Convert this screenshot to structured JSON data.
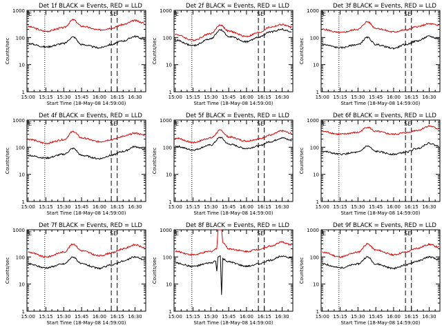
{
  "colors": {
    "events": "#000000",
    "lld": "#dd0000",
    "axes": "#000000",
    "background": "#ffffff"
  },
  "chart_data": [
    {
      "type": "line",
      "title": "Det 1f BLACK = Events, RED = LLD",
      "xlabel": "Start Time (18-May-08 14:59:00)",
      "ylabel": "Counts/sec",
      "yscale": "log",
      "xlim": [
        "14:59",
        "16:39"
      ],
      "ylim": [
        1,
        1000
      ],
      "xticks": [
        "15:00",
        "15:15",
        "15:30",
        "15:45",
        "16:00",
        "16:15",
        "16:30"
      ],
      "yticks": [
        "1",
        "10",
        "100",
        "1000"
      ],
      "markers": {
        "left_label": "E",
        "right_label": "SE",
        "dotted": "15:14",
        "dashed": [
          "16:10",
          "16:15"
        ]
      },
      "series": [
        {
          "name": "RED = LLD",
          "x": [
            "15:00",
            "15:15",
            "15:30",
            "15:38",
            "15:45",
            "16:00",
            "16:10",
            "16:20",
            "16:30",
            "16:38"
          ],
          "values": [
            250,
            170,
            230,
            450,
            260,
            190,
            220,
            300,
            420,
            340
          ]
        },
        {
          "name": "BLACK = Events",
          "x": [
            "15:00",
            "15:15",
            "15:30",
            "15:38",
            "15:45",
            "16:00",
            "16:10",
            "16:20",
            "16:30",
            "16:38"
          ],
          "values": [
            60,
            45,
            60,
            105,
            55,
            42,
            55,
            75,
            110,
            85
          ]
        }
      ]
    },
    {
      "type": "line",
      "title": "Det 2f BLACK = Events, RED = LLD",
      "xlabel": "Start Time (18-May-08 14:59:00)",
      "ylabel": "Counts/sec",
      "yscale": "log",
      "xlim": [
        "14:59",
        "16:39"
      ],
      "ylim": [
        1,
        1000
      ],
      "xticks": [
        "15:00",
        "15:15",
        "15:30",
        "15:45",
        "16:00",
        "16:15",
        "16:30"
      ],
      "yticks": [
        "1",
        "10",
        "100",
        "1000"
      ],
      "markers": {
        "left_label": "E",
        "right_label": "SE",
        "dotted": "15:14",
        "dashed": [
          "16:10",
          "16:15"
        ]
      },
      "series": [
        {
          "name": "RED = LLD",
          "x": [
            "15:00",
            "15:15",
            "15:30",
            "15:38",
            "15:45",
            "16:00",
            "16:10",
            "16:20",
            "16:30",
            "16:38"
          ],
          "values": [
            130,
            80,
            140,
            290,
            170,
            110,
            150,
            240,
            300,
            240
          ]
        },
        {
          "name": "BLACK = Events",
          "x": [
            "15:00",
            "15:15",
            "15:30",
            "15:38",
            "15:45",
            "16:00",
            "16:10",
            "16:20",
            "16:30",
            "16:38"
          ],
          "values": [
            80,
            50,
            90,
            190,
            110,
            70,
            100,
            160,
            200,
            160
          ]
        }
      ]
    },
    {
      "type": "line",
      "title": "Det 3f BLACK = Events, RED = LLD",
      "xlabel": "Start Time (18-May-08 14:59:00)",
      "ylabel": "Counts/sec",
      "yscale": "log",
      "xlim": [
        "14:59",
        "16:39"
      ],
      "ylim": [
        1,
        1000
      ],
      "xticks": [
        "15:00",
        "15:15",
        "15:30",
        "15:45",
        "16:00",
        "16:15",
        "16:30"
      ],
      "yticks": [
        "1",
        "10",
        "100",
        "1000"
      ],
      "markers": {
        "left_label": "E",
        "right_label": "SE",
        "dotted": "15:14",
        "dashed": [
          "16:10",
          "16:15"
        ]
      },
      "series": [
        {
          "name": "RED = LLD",
          "x": [
            "15:00",
            "15:15",
            "15:30",
            "15:38",
            "15:45",
            "16:00",
            "16:10",
            "16:20",
            "16:30",
            "16:38"
          ],
          "values": [
            200,
            150,
            200,
            380,
            220,
            160,
            190,
            250,
            320,
            280
          ]
        },
        {
          "name": "BLACK = Events",
          "x": [
            "15:00",
            "15:15",
            "15:30",
            "15:38",
            "15:45",
            "16:00",
            "16:10",
            "16:20",
            "16:30",
            "16:38"
          ],
          "values": [
            55,
            42,
            55,
            100,
            55,
            40,
            55,
            75,
            110,
            90
          ]
        }
      ]
    },
    {
      "type": "line",
      "title": "Det 4f BLACK = Events, RED = LLD",
      "xlabel": "Start Time (18-May-08 14:59:00)",
      "ylabel": "Counts/sec",
      "yscale": "log",
      "xlim": [
        "14:59",
        "16:39"
      ],
      "ylim": [
        1,
        1000
      ],
      "xticks": [
        "15:00",
        "15:15",
        "15:30",
        "15:45",
        "16:00",
        "16:15",
        "16:30"
      ],
      "yticks": [
        "1",
        "10",
        "100",
        "1000"
      ],
      "markers": {
        "left_label": "E",
        "right_label": "SE",
        "dotted": "15:14",
        "dashed": [
          "16:10",
          "16:15"
        ]
      },
      "series": [
        {
          "name": "RED = LLD",
          "x": [
            "15:00",
            "15:15",
            "15:30",
            "15:38",
            "15:45",
            "16:00",
            "16:10",
            "16:20",
            "16:30",
            "16:38"
          ],
          "values": [
            200,
            140,
            190,
            380,
            220,
            160,
            190,
            250,
            330,
            280
          ]
        },
        {
          "name": "BLACK = Events",
          "x": [
            "15:00",
            "15:15",
            "15:30",
            "15:38",
            "15:45",
            "16:00",
            "16:10",
            "16:20",
            "16:30",
            "16:38"
          ],
          "values": [
            50,
            40,
            55,
            90,
            50,
            38,
            50,
            70,
            105,
            85
          ]
        }
      ]
    },
    {
      "type": "line",
      "title": "Det 5f BLACK = Events, RED = LLD",
      "xlabel": "Start Time (18-May-08 14:59:00)",
      "ylabel": "Counts/sec",
      "yscale": "log",
      "xlim": [
        "14:59",
        "16:39"
      ],
      "ylim": [
        1,
        1000
      ],
      "xticks": [
        "15:00",
        "15:15",
        "15:30",
        "15:45",
        "16:00",
        "16:15",
        "16:30"
      ],
      "yticks": [
        "1",
        "10",
        "100",
        "1000"
      ],
      "markers": {
        "left_label": "E",
        "right_label": "SE",
        "dotted": "15:14",
        "dashed": [
          "16:10",
          "16:15"
        ]
      },
      "series": [
        {
          "name": "RED = LLD",
          "x": [
            "15:00",
            "15:15",
            "15:30",
            "15:38",
            "15:45",
            "16:00",
            "16:10",
            "16:20",
            "16:30",
            "16:38"
          ],
          "values": [
            220,
            150,
            220,
            420,
            240,
            170,
            200,
            280,
            400,
            320
          ]
        },
        {
          "name": "BLACK = Events",
          "x": [
            "15:00",
            "15:15",
            "15:30",
            "15:38",
            "15:45",
            "16:00",
            "16:10",
            "16:20",
            "16:30",
            "16:38"
          ],
          "values": [
            110,
            80,
            120,
            230,
            130,
            90,
            110,
            160,
            220,
            180
          ]
        }
      ]
    },
    {
      "type": "line",
      "title": "Det 6f BLACK = Events, RED = LLD",
      "xlabel": "Start Time (18-May-08 14:59:00)",
      "ylabel": "Counts/sec",
      "yscale": "log",
      "xlim": [
        "14:59",
        "16:39"
      ],
      "ylim": [
        1,
        1000
      ],
      "xticks": [
        "15:00",
        "15:15",
        "15:30",
        "15:45",
        "16:00",
        "16:15",
        "16:30"
      ],
      "yticks": [
        "1",
        "10",
        "100",
        "1000"
      ],
      "markers": {
        "left_label": "E",
        "right_label": "SE",
        "dotted": "15:14",
        "dashed": [
          "16:10",
          "16:15"
        ]
      },
      "series": [
        {
          "name": "RED = LLD",
          "x": [
            "15:00",
            "15:15",
            "15:30",
            "15:38",
            "15:45",
            "16:00",
            "16:10",
            "16:20",
            "16:30",
            "16:38"
          ],
          "values": [
            380,
            300,
            350,
            550,
            380,
            300,
            340,
            420,
            600,
            480
          ]
        },
        {
          "name": "BLACK = Events",
          "x": [
            "15:00",
            "15:15",
            "15:30",
            "15:38",
            "15:45",
            "16:00",
            "16:10",
            "16:20",
            "16:30",
            "16:38"
          ],
          "values": [
            70,
            55,
            65,
            110,
            70,
            55,
            65,
            90,
            140,
            110
          ]
        }
      ]
    },
    {
      "type": "line",
      "title": "Det 7f BLACK = Events, RED = LLD",
      "xlabel": "Start Time (18-May-08 14:59:00)",
      "ylabel": "Counts/sec",
      "yscale": "log",
      "xlim": [
        "14:59",
        "16:39"
      ],
      "ylim": [
        1,
        1000
      ],
      "xticks": [
        "15:00",
        "15:15",
        "15:30",
        "15:45",
        "16:00",
        "16:15",
        "16:30"
      ],
      "yticks": [
        "1",
        "10",
        "100",
        "1000"
      ],
      "markers": {
        "left_label": "E",
        "right_label": "SE",
        "dotted": "15:14",
        "dashed": [
          "16:10",
          "16:15"
        ]
      },
      "series": [
        {
          "name": "RED = LLD",
          "x": [
            "15:00",
            "15:15",
            "15:30",
            "15:38",
            "15:45",
            "16:00",
            "16:10",
            "16:20",
            "16:30",
            "16:38"
          ],
          "values": [
            150,
            100,
            150,
            300,
            170,
            110,
            140,
            200,
            280,
            220
          ]
        },
        {
          "name": "BLACK = Events",
          "x": [
            "15:00",
            "15:15",
            "15:30",
            "15:38",
            "15:45",
            "16:00",
            "16:10",
            "16:20",
            "16:30",
            "16:38"
          ],
          "values": [
            55,
            40,
            55,
            100,
            55,
            38,
            50,
            70,
            100,
            80
          ]
        }
      ]
    },
    {
      "type": "line",
      "title": "Det 8f BLACK = Events, RED = LLD",
      "xlabel": "Start Time (18-May-08 14:59:00)",
      "ylabel": "Counts/sec",
      "yscale": "log",
      "xlim": [
        "14:59",
        "16:39"
      ],
      "ylim": [
        1,
        1000
      ],
      "xticks": [
        "15:00",
        "15:15",
        "15:30",
        "15:45",
        "16:00",
        "16:15",
        "16:30"
      ],
      "yticks": [
        "1",
        "10",
        "100",
        "1000"
      ],
      "markers": {
        "left_label": "E",
        "right_label": "SE",
        "dotted": "15:14",
        "dashed": [
          "16:10",
          "16:15"
        ]
      },
      "series": [
        {
          "name": "RED = LLD",
          "x": [
            "15:00",
            "15:15",
            "15:30",
            "15:35",
            "15:36",
            "15:37",
            "15:38",
            "15:39",
            "15:40",
            "15:45",
            "16:00",
            "16:10",
            "16:20",
            "16:30",
            "16:38"
          ],
          "values": [
            160,
            120,
            160,
            200,
            1000,
            1000,
            1000,
            1000,
            350,
            200,
            160,
            190,
            250,
            350,
            280
          ]
        },
        {
          "name": "BLACK = Events",
          "x": [
            "15:00",
            "15:15",
            "15:30",
            "15:34",
            "15:35",
            "15:36",
            "15:38",
            "15:39",
            "15:40",
            "15:41",
            "15:45",
            "16:00",
            "16:10",
            "16:20",
            "16:30",
            "16:38"
          ],
          "values": [
            60,
            45,
            60,
            70,
            30,
            100,
            110,
            4,
            90,
            80,
            65,
            45,
            55,
            75,
            110,
            90
          ]
        }
      ]
    },
    {
      "type": "line",
      "title": "Det 9f BLACK = Events, RED = LLD",
      "xlabel": "Start Time (18-May-08 14:59:00)",
      "ylabel": "Counts/sec",
      "yscale": "log",
      "xlim": [
        "14:59",
        "16:39"
      ],
      "ylim": [
        1,
        1000
      ],
      "xticks": [
        "15:00",
        "15:15",
        "15:30",
        "15:45",
        "16:00",
        "16:15",
        "16:30"
      ],
      "yticks": [
        "1",
        "10",
        "100",
        "1000"
      ],
      "markers": {
        "left_label": "E",
        "right_label": "SE",
        "dotted": "15:14",
        "dashed": [
          "16:10",
          "16:15"
        ]
      },
      "series": [
        {
          "name": "RED = LLD",
          "x": [
            "15:00",
            "15:15",
            "15:30",
            "15:38",
            "15:45",
            "16:00",
            "16:10",
            "16:20",
            "16:30",
            "16:38"
          ],
          "values": [
            150,
            100,
            150,
            300,
            180,
            120,
            150,
            210,
            290,
            230
          ]
        },
        {
          "name": "BLACK = Events",
          "x": [
            "15:00",
            "15:15",
            "15:30",
            "15:38",
            "15:45",
            "16:00",
            "16:10",
            "16:20",
            "16:30",
            "16:38"
          ],
          "values": [
            55,
            40,
            55,
            100,
            55,
            38,
            50,
            70,
            100,
            80
          ]
        }
      ]
    }
  ]
}
